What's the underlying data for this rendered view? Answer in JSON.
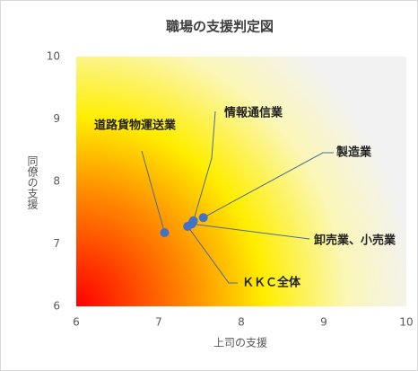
{
  "chart_data": {
    "type": "scatter",
    "title": "職場の支援判定図",
    "x_label": "上司の支援",
    "y_label": "同僚の支援",
    "xlim": [
      6,
      10
    ],
    "xticks": [
      6,
      7,
      8,
      9,
      10
    ],
    "ylim": [
      6,
      10
    ],
    "yticks": [
      6,
      7,
      8,
      9,
      10
    ],
    "color": "#4472c4",
    "points": [
      {
        "name": "道路貨物運送業",
        "x": 7.07,
        "y": 7.18
      },
      {
        "name": "情報通信業",
        "x": 7.42,
        "y": 7.37
      },
      {
        "name": "製造業",
        "x": 7.54,
        "y": 7.42
      },
      {
        "name": "卸売業、小売業",
        "x": 7.4,
        "y": 7.32
      },
      {
        "name": "ＫＫＣ全体",
        "x": 7.35,
        "y": 7.28
      }
    ]
  }
}
